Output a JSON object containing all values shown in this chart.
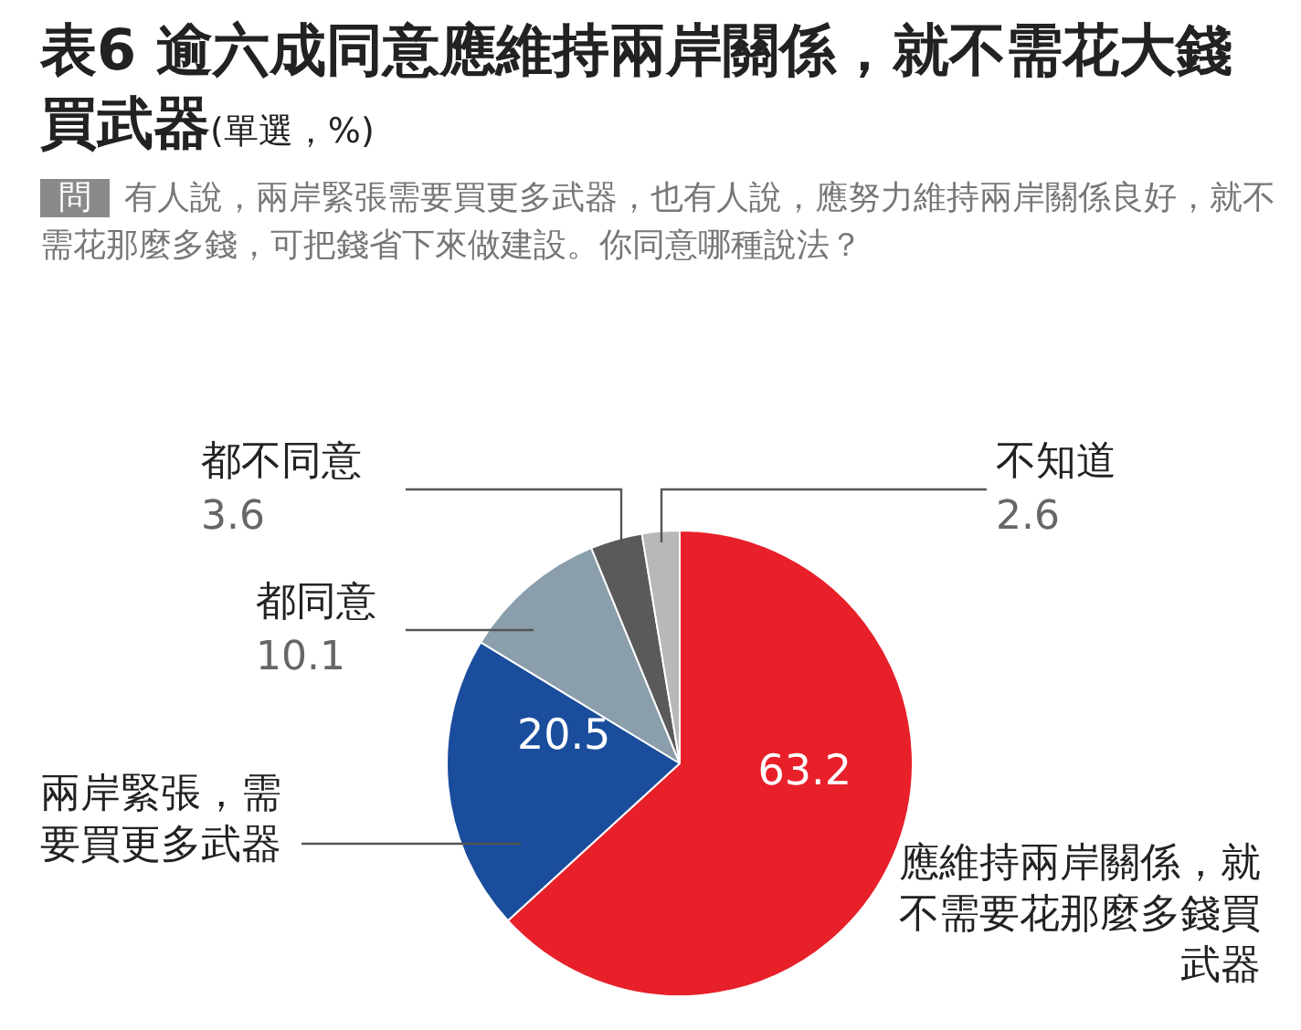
{
  "chart_data": {
    "type": "pie",
    "title": "表6 逾六成同意應維持兩岸關係，就不需花大錢買武器",
    "subtitle": "(單選，%)",
    "annotations": [
      "問",
      "有人說，兩岸緊張需要買更多武器，也有人說，應努力維持兩岸關係良好，就不需花那麼多錢，可把錢省下來做建設。你同意哪種說法？"
    ],
    "categories": [
      "應維持兩岸關係，就不需要花那麼多錢買武器",
      "兩岸緊張，需要買更多武器",
      "都同意",
      "都不同意",
      "不知道"
    ],
    "values": [
      63.2,
      20.5,
      10.1,
      3.6,
      2.6
    ],
    "colors": [
      "#e8202a",
      "#1a4d9c",
      "#8a9eab",
      "#5a5a5a",
      "#b8b8b8"
    ],
    "data_labels": true,
    "legend": false
  }
}
